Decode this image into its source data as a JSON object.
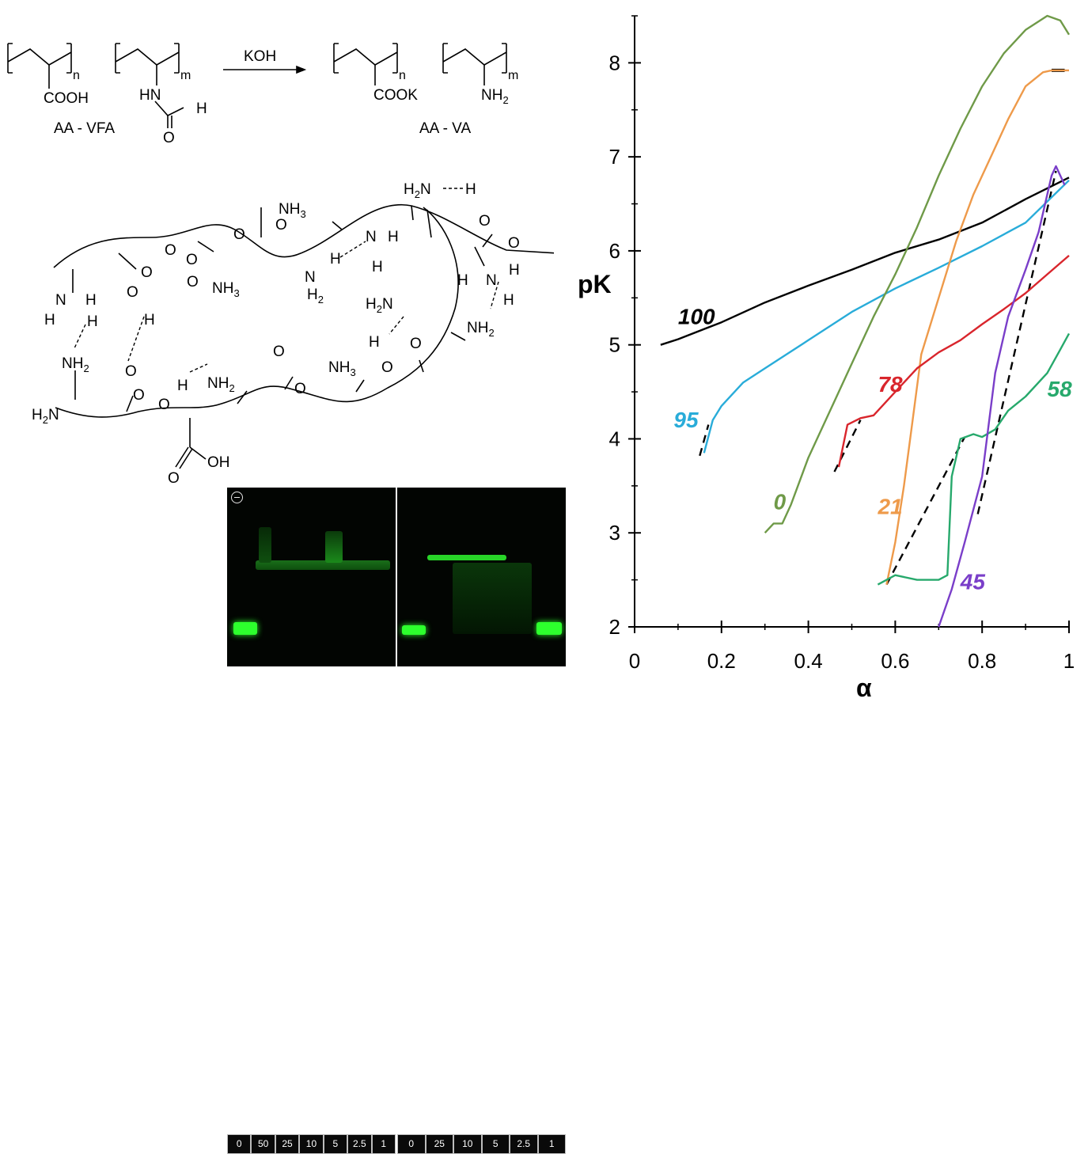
{
  "scheme": {
    "reaction_reagent": "KOH",
    "reactant_label": "AA - VFA",
    "product_label": "AA - VA",
    "reactant_unit1_group": "COOH",
    "reactant_unit2_group": "HN",
    "formyl_H": "H",
    "formyl_O": "O",
    "product_unit1_group": "COOK",
    "product_unit2_group": "NH",
    "product_unit2_sub": "2",
    "sub_n": "n",
    "sub_m": "m"
  },
  "gel": {
    "left_lanes": [
      "0",
      "50",
      "25",
      "10",
      "5",
      "2.5",
      "1"
    ],
    "right_lanes": [
      "0",
      "25",
      "10",
      "5",
      "2.5",
      "1"
    ],
    "band_color": "#22ff22"
  },
  "chart_data": {
    "type": "line",
    "xlabel": "α",
    "ylabel": "pK",
    "xlim": [
      0,
      1
    ],
    "ylim": [
      2,
      8.5
    ],
    "xticks": [
      "0",
      "0.2",
      "0.4",
      "0.6",
      "0.8",
      "1"
    ],
    "yticks": [
      "2",
      "3",
      "4",
      "5",
      "6",
      "7",
      "8"
    ],
    "grid": false,
    "series": [
      {
        "name": "100",
        "color": "#000000",
        "x": [
          0.06,
          0.1,
          0.2,
          0.3,
          0.4,
          0.5,
          0.6,
          0.7,
          0.8,
          0.9,
          1.0
        ],
        "y": [
          5.0,
          5.06,
          5.24,
          5.45,
          5.63,
          5.8,
          5.98,
          6.12,
          6.3,
          6.55,
          6.78
        ]
      },
      {
        "name": "95",
        "color": "#29acd9",
        "x": [
          0.16,
          0.18,
          0.2,
          0.25,
          0.3,
          0.4,
          0.5,
          0.6,
          0.7,
          0.8,
          0.9,
          1.0
        ],
        "y": [
          3.85,
          4.2,
          4.35,
          4.6,
          4.75,
          5.05,
          5.35,
          5.6,
          5.82,
          6.05,
          6.3,
          6.75
        ]
      },
      {
        "name": "0",
        "color": "#6f9a48",
        "x": [
          0.3,
          0.32,
          0.34,
          0.36,
          0.4,
          0.45,
          0.5,
          0.55,
          0.6,
          0.65,
          0.7,
          0.75,
          0.8,
          0.85,
          0.9,
          0.95,
          0.98,
          1.0
        ],
        "y": [
          3.0,
          3.1,
          3.1,
          3.3,
          3.8,
          4.3,
          4.8,
          5.3,
          5.75,
          6.25,
          6.8,
          7.3,
          7.75,
          8.1,
          8.35,
          8.5,
          8.45,
          8.3
        ]
      },
      {
        "name": "21",
        "color": "#ee9a4a",
        "x": [
          0.58,
          0.6,
          0.62,
          0.64,
          0.66,
          0.7,
          0.74,
          0.78,
          0.82,
          0.86,
          0.9,
          0.94,
          0.96,
          0.98,
          1.0
        ],
        "y": [
          2.45,
          2.9,
          3.5,
          4.2,
          4.9,
          5.5,
          6.1,
          6.6,
          7.0,
          7.4,
          7.75,
          7.9,
          7.92,
          7.92,
          7.92
        ]
      },
      {
        "name": "78",
        "color": "#d9252c",
        "x": [
          0.47,
          0.49,
          0.52,
          0.55,
          0.6,
          0.65,
          0.7,
          0.75,
          0.8,
          0.85,
          0.9,
          0.95,
          1.0
        ],
        "y": [
          3.7,
          4.15,
          4.22,
          4.25,
          4.5,
          4.75,
          4.92,
          5.05,
          5.22,
          5.38,
          5.55,
          5.75,
          5.95
        ]
      },
      {
        "name": "58",
        "color": "#27a96c",
        "x": [
          0.56,
          0.6,
          0.65,
          0.7,
          0.72,
          0.73,
          0.75,
          0.78,
          0.8,
          0.83,
          0.86,
          0.9,
          0.95,
          0.98,
          1.0
        ],
        "y": [
          2.45,
          2.55,
          2.5,
          2.5,
          2.55,
          3.6,
          4.0,
          4.05,
          4.02,
          4.1,
          4.3,
          4.45,
          4.7,
          4.95,
          5.12
        ]
      },
      {
        "name": "45",
        "color": "#7a3ec9",
        "x": [
          0.7,
          0.73,
          0.76,
          0.8,
          0.83,
          0.86,
          0.9,
          0.93,
          0.96,
          0.97,
          0.98,
          0.99
        ],
        "y": [
          2.0,
          2.4,
          2.9,
          3.6,
          4.7,
          5.3,
          5.8,
          6.2,
          6.8,
          6.9,
          6.8,
          6.7
        ]
      }
    ],
    "dashed_fits": [
      {
        "color": "#000000",
        "x": [
          0.15,
          0.17
        ],
        "y": [
          3.82,
          4.15
        ]
      },
      {
        "color": "#000000",
        "x": [
          0.46,
          0.52
        ],
        "y": [
          3.65,
          4.2
        ]
      },
      {
        "color": "#000000",
        "x": [
          0.58,
          0.76
        ],
        "y": [
          2.45,
          4.02
        ]
      },
      {
        "color": "#000000",
        "x": [
          0.79,
          0.97
        ],
        "y": [
          3.2,
          6.85
        ]
      }
    ],
    "label_positions_data": [
      {
        "series": "100",
        "x": 0.1,
        "y": 5.22
      },
      {
        "series": "95",
        "x": 0.09,
        "y": 4.12
      },
      {
        "series": "0",
        "x": 0.32,
        "y": 3.25
      },
      {
        "series": "21",
        "x": 0.56,
        "y": 3.2
      },
      {
        "series": "78",
        "x": 0.56,
        "y": 4.5
      },
      {
        "series": "58",
        "x": 0.95,
        "y": 4.45
      },
      {
        "series": "45",
        "x": 0.75,
        "y": 2.4
      }
    ]
  }
}
